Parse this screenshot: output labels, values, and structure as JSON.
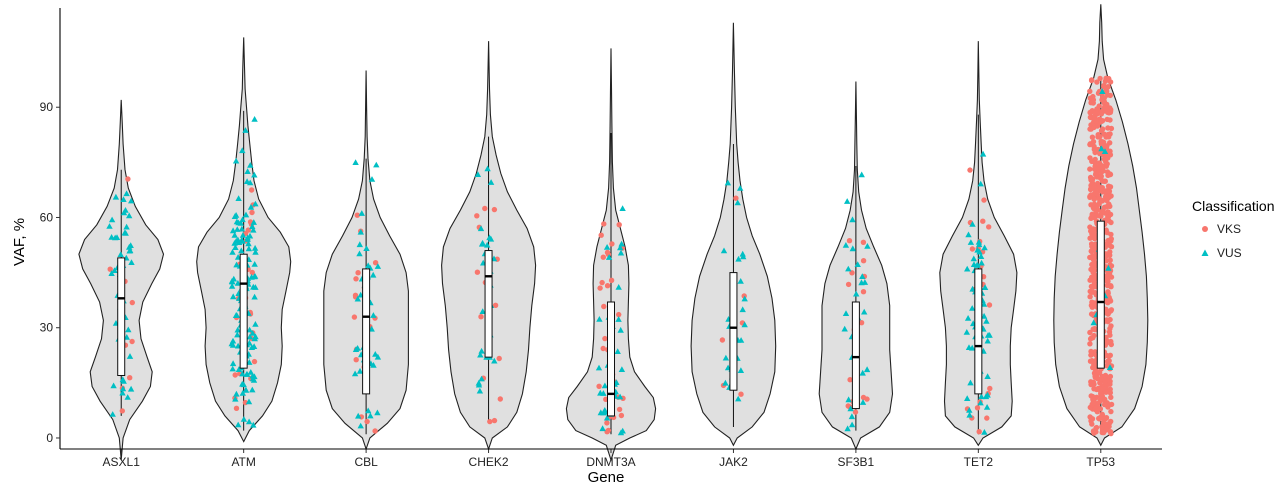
{
  "chart_data": {
    "type": "violin",
    "xlabel": "Gene",
    "ylabel": "VAF, %",
    "ylim": [
      -3,
      117
    ],
    "yticks": [
      0,
      30,
      60,
      90
    ],
    "grid": false,
    "legend_position": "right",
    "colors": {
      "violin_fill": "#e0e0e0",
      "violin_stroke": "#222222",
      "VKS": "#f8766d",
      "VUS": "#00bfc4"
    },
    "legend": {
      "title": "Classification",
      "entries": [
        {
          "label": "VKS",
          "shape": "circle"
        },
        {
          "label": "VUS",
          "shape": "triangle"
        }
      ]
    },
    "genes": [
      {
        "name": "ASXL1",
        "min": -6,
        "max": 92,
        "box": {
          "q1": 17,
          "median": 38,
          "q3": 49,
          "wlow": 6,
          "whigh": 73
        },
        "n_vks": 10,
        "n_vus": 45,
        "profile": [
          [
            -6,
            0
          ],
          [
            0,
            0.04
          ],
          [
            5,
            0.18
          ],
          [
            10,
            0.45
          ],
          [
            14,
            0.62
          ],
          [
            18,
            0.66
          ],
          [
            22,
            0.55
          ],
          [
            27,
            0.42
          ],
          [
            32,
            0.38
          ],
          [
            37,
            0.46
          ],
          [
            42,
            0.65
          ],
          [
            46,
            0.82
          ],
          [
            50,
            0.9
          ],
          [
            54,
            0.78
          ],
          [
            58,
            0.52
          ],
          [
            63,
            0.3
          ],
          [
            68,
            0.15
          ],
          [
            73,
            0.08
          ],
          [
            80,
            0.04
          ],
          [
            86,
            0.02
          ],
          [
            92,
            0
          ]
        ]
      },
      {
        "name": "ATM",
        "min": -1,
        "max": 109,
        "box": {
          "q1": 19,
          "median": 42,
          "q3": 50,
          "wlow": 2,
          "whigh": 89
        },
        "n_vks": 30,
        "n_vus": 130,
        "profile": [
          [
            -1,
            0
          ],
          [
            2,
            0.12
          ],
          [
            6,
            0.4
          ],
          [
            10,
            0.6
          ],
          [
            15,
            0.72
          ],
          [
            20,
            0.8
          ],
          [
            25,
            0.82
          ],
          [
            30,
            0.8
          ],
          [
            35,
            0.82
          ],
          [
            40,
            0.9
          ],
          [
            45,
            0.98
          ],
          [
            48,
            1.0
          ],
          [
            52,
            0.96
          ],
          [
            56,
            0.78
          ],
          [
            60,
            0.52
          ],
          [
            65,
            0.32
          ],
          [
            70,
            0.22
          ],
          [
            75,
            0.17
          ],
          [
            80,
            0.13
          ],
          [
            85,
            0.09
          ],
          [
            90,
            0.06
          ],
          [
            95,
            0.03
          ],
          [
            100,
            0.02
          ],
          [
            109,
            0
          ]
        ]
      },
      {
        "name": "CBL",
        "min": -3,
        "max": 100,
        "box": {
          "q1": 12,
          "median": 33,
          "q3": 46,
          "wlow": 1,
          "whigh": 76
        },
        "n_vks": 18,
        "n_vus": 42,
        "profile": [
          [
            -3,
            0
          ],
          [
            0,
            0.08
          ],
          [
            4,
            0.45
          ],
          [
            8,
            0.72
          ],
          [
            13,
            0.85
          ],
          [
            20,
            0.9
          ],
          [
            27,
            0.9
          ],
          [
            33,
            0.9
          ],
          [
            40,
            0.9
          ],
          [
            45,
            0.85
          ],
          [
            50,
            0.72
          ],
          [
            55,
            0.5
          ],
          [
            60,
            0.3
          ],
          [
            65,
            0.16
          ],
          [
            70,
            0.08
          ],
          [
            76,
            0.04
          ],
          [
            82,
            0.02
          ],
          [
            90,
            0.01
          ],
          [
            100,
            0
          ]
        ]
      },
      {
        "name": "CHEK2",
        "min": -3,
        "max": 108,
        "box": {
          "q1": 22,
          "median": 44,
          "q3": 51,
          "wlow": 4,
          "whigh": 82
        },
        "n_vks": 14,
        "n_vus": 28,
        "profile": [
          [
            -3,
            0
          ],
          [
            0,
            0.08
          ],
          [
            3,
            0.4
          ],
          [
            7,
            0.6
          ],
          [
            12,
            0.72
          ],
          [
            18,
            0.8
          ],
          [
            24,
            0.85
          ],
          [
            30,
            0.88
          ],
          [
            36,
            0.92
          ],
          [
            42,
            0.98
          ],
          [
            47,
            1.0
          ],
          [
            52,
            0.96
          ],
          [
            57,
            0.82
          ],
          [
            62,
            0.6
          ],
          [
            67,
            0.4
          ],
          [
            72,
            0.26
          ],
          [
            77,
            0.16
          ],
          [
            82,
            0.08
          ],
          [
            88,
            0.04
          ],
          [
            95,
            0.02
          ],
          [
            108,
            0
          ]
        ]
      },
      {
        "name": "DNMT3A",
        "min": -6,
        "max": 106,
        "box": {
          "q1": 6,
          "median": 12,
          "q3": 37,
          "wlow": 1,
          "whigh": 83
        },
        "n_vks": 30,
        "n_vus": 35,
        "profile": [
          [
            -6,
            0
          ],
          [
            -2,
            0.1
          ],
          [
            0,
            0.4
          ],
          [
            2,
            0.75
          ],
          [
            5,
            0.92
          ],
          [
            8,
            0.95
          ],
          [
            11,
            0.9
          ],
          [
            14,
            0.72
          ],
          [
            18,
            0.5
          ],
          [
            22,
            0.4
          ],
          [
            27,
            0.37
          ],
          [
            32,
            0.36
          ],
          [
            37,
            0.37
          ],
          [
            42,
            0.38
          ],
          [
            47,
            0.37
          ],
          [
            52,
            0.3
          ],
          [
            57,
            0.2
          ],
          [
            62,
            0.1
          ],
          [
            68,
            0.05
          ],
          [
            75,
            0.03
          ],
          [
            85,
            0.02
          ],
          [
            95,
            0.01
          ],
          [
            106,
            0
          ]
        ]
      },
      {
        "name": "JAK2",
        "min": -2,
        "max": 113,
        "box": {
          "q1": 13,
          "median": 30,
          "q3": 45,
          "wlow": 3,
          "whigh": 80
        },
        "n_vks": 6,
        "n_vus": 28,
        "profile": [
          [
            -2,
            0
          ],
          [
            0,
            0.08
          ],
          [
            3,
            0.4
          ],
          [
            7,
            0.65
          ],
          [
            12,
            0.78
          ],
          [
            18,
            0.88
          ],
          [
            25,
            0.9
          ],
          [
            32,
            0.88
          ],
          [
            38,
            0.82
          ],
          [
            44,
            0.72
          ],
          [
            50,
            0.56
          ],
          [
            55,
            0.4
          ],
          [
            60,
            0.28
          ],
          [
            65,
            0.2
          ],
          [
            70,
            0.14
          ],
          [
            75,
            0.1
          ],
          [
            80,
            0.07
          ],
          [
            90,
            0.04
          ],
          [
            100,
            0.02
          ],
          [
            113,
            0
          ]
        ]
      },
      {
        "name": "SF3B1",
        "min": -3,
        "max": 97,
        "box": {
          "q1": 8,
          "median": 22,
          "q3": 37,
          "wlow": 2,
          "whigh": 74
        },
        "n_vks": 16,
        "n_vus": 26,
        "profile": [
          [
            -3,
            0
          ],
          [
            0,
            0.1
          ],
          [
            3,
            0.5
          ],
          [
            7,
            0.72
          ],
          [
            12,
            0.78
          ],
          [
            18,
            0.75
          ],
          [
            24,
            0.72
          ],
          [
            30,
            0.72
          ],
          [
            36,
            0.72
          ],
          [
            42,
            0.66
          ],
          [
            47,
            0.55
          ],
          [
            52,
            0.38
          ],
          [
            57,
            0.22
          ],
          [
            62,
            0.12
          ],
          [
            67,
            0.06
          ],
          [
            73,
            0.03
          ],
          [
            80,
            0.02
          ],
          [
            88,
            0.01
          ],
          [
            97,
            0
          ]
        ]
      },
      {
        "name": "TET2",
        "min": -2,
        "max": 108,
        "box": {
          "q1": 12,
          "median": 25,
          "q3": 46,
          "wlow": 1,
          "whigh": 88
        },
        "n_vks": 24,
        "n_vus": 60,
        "profile": [
          [
            -2,
            0
          ],
          [
            0,
            0.1
          ],
          [
            3,
            0.5
          ],
          [
            6,
            0.7
          ],
          [
            10,
            0.72
          ],
          [
            15,
            0.7
          ],
          [
            20,
            0.68
          ],
          [
            25,
            0.68
          ],
          [
            30,
            0.7
          ],
          [
            35,
            0.75
          ],
          [
            40,
            0.8
          ],
          [
            45,
            0.82
          ],
          [
            50,
            0.75
          ],
          [
            55,
            0.55
          ],
          [
            60,
            0.34
          ],
          [
            65,
            0.2
          ],
          [
            70,
            0.12
          ],
          [
            75,
            0.08
          ],
          [
            80,
            0.06
          ],
          [
            86,
            0.04
          ],
          [
            92,
            0.02
          ],
          [
            100,
            0.01
          ],
          [
            108,
            0
          ]
        ]
      },
      {
        "name": "TP53",
        "min": -2,
        "max": 118,
        "box": {
          "q1": 19,
          "median": 37,
          "q3": 59,
          "wlow": 1,
          "whigh": 98
        },
        "n_vks": 620,
        "n_vus": 10,
        "profile": [
          [
            -2,
            0
          ],
          [
            0,
            0.08
          ],
          [
            3,
            0.45
          ],
          [
            8,
            0.72
          ],
          [
            14,
            0.88
          ],
          [
            20,
            0.96
          ],
          [
            26,
            0.99
          ],
          [
            32,
            1.0
          ],
          [
            38,
            0.99
          ],
          [
            44,
            0.97
          ],
          [
            50,
            0.93
          ],
          [
            56,
            0.88
          ],
          [
            62,
            0.82
          ],
          [
            68,
            0.76
          ],
          [
            74,
            0.68
          ],
          [
            80,
            0.58
          ],
          [
            86,
            0.46
          ],
          [
            92,
            0.32
          ],
          [
            98,
            0.15
          ],
          [
            103,
            0.06
          ],
          [
            108,
            0.03
          ],
          [
            113,
            0.02
          ],
          [
            118,
            0
          ]
        ]
      }
    ]
  }
}
